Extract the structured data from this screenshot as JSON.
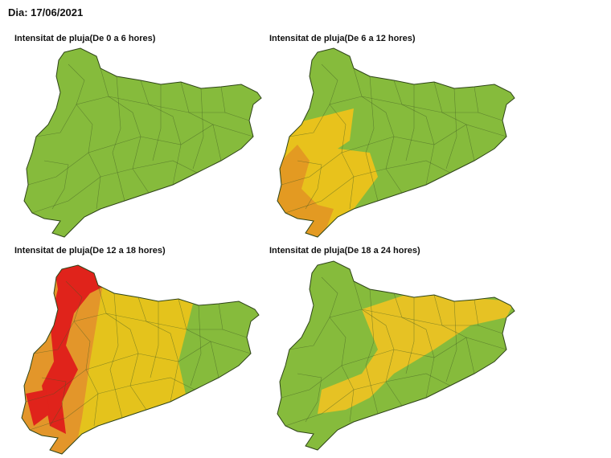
{
  "header": {
    "date": "Dia: 17/06/2021"
  },
  "maps": [
    {
      "title": "Intensitat de pluja(De 0 a 6 hores)"
    },
    {
      "title": "Intensitat de pluja(De 6 a 12 hores)"
    },
    {
      "title": "Intensitat de pluja(De 12 a 18 hores)"
    },
    {
      "title": "Intensitat de pluja(De 18 a 24 hores)"
    }
  ]
}
